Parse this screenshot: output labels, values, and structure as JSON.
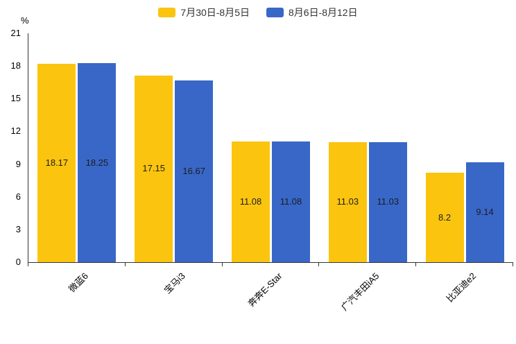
{
  "unit": "%",
  "chart_data": {
    "type": "bar",
    "title": "",
    "categories": [
      "微蓝6",
      "宝马i3",
      "奔奔E-Star",
      "广汽丰田iA5",
      "比亚迪e2"
    ],
    "series": [
      {
        "name": "7月30日-8月5日",
        "color": "#FBC40F",
        "values": [
          18.17,
          17.15,
          11.08,
          11.03,
          8.2
        ]
      },
      {
        "name": "8月6日-8月12日",
        "color": "#3867C8",
        "values": [
          18.25,
          16.67,
          11.08,
          11.03,
          9.14
        ]
      }
    ],
    "xlabel": "",
    "ylabel": "%",
    "ylim": [
      0,
      21
    ],
    "yticks": [
      0,
      3,
      6,
      9,
      12,
      15,
      18,
      21
    ],
    "grid": false,
    "legend_position": "top",
    "bar_label_color": "#1d1d1d",
    "axis_color": "#333333"
  }
}
